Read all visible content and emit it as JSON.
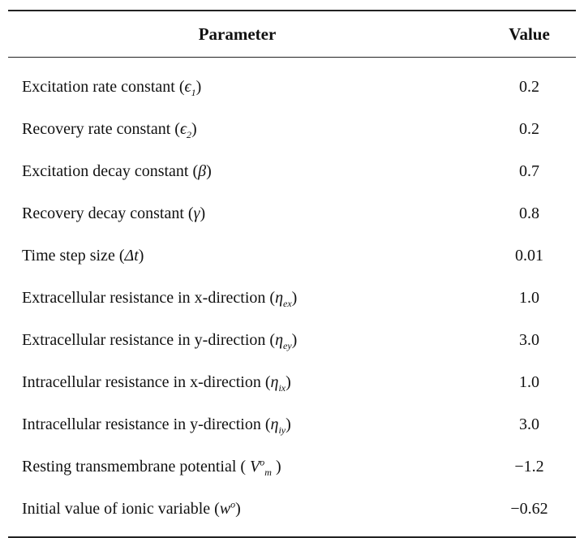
{
  "table": {
    "headers": {
      "parameter": "Parameter",
      "value": "Value"
    },
    "rows": [
      {
        "label": "Excitation rate constant",
        "open": " (",
        "symbol": "ϵ",
        "sub": "1",
        "sup": "",
        "close": ")",
        "value": "0.2"
      },
      {
        "label": "Recovery rate constant",
        "open": " (",
        "symbol": "ϵ",
        "sub": "2",
        "sup": "",
        "close": ")",
        "value": "0.2"
      },
      {
        "label": "Excitation decay constant",
        "open": " (",
        "symbol": "β",
        "sub": "",
        "sup": "",
        "close": ")",
        "value": "0.7"
      },
      {
        "label": "Recovery decay constant",
        "open": " (",
        "symbol": "γ",
        "sub": "",
        "sup": "",
        "close": ")",
        "value": "0.8"
      },
      {
        "label": "Time step size",
        "open": " (",
        "symbol": "Δt",
        "sub": "",
        "sup": "",
        "close": ")",
        "value": "0.01"
      },
      {
        "label": "Extracellular resistance in x-direction",
        "open": " (",
        "symbol": "η",
        "sub": "ex",
        "sup": "",
        "close": ")",
        "value": "1.0"
      },
      {
        "label": "Extracellular resistance in y-direction",
        "open": " (",
        "symbol": "η",
        "sub": "ey",
        "sup": "",
        "close": ")",
        "value": "3.0"
      },
      {
        "label": "Intracellular resistance in x-direction",
        "open": " (",
        "symbol": "η",
        "sub": "ix",
        "sup": "",
        "close": ")",
        "value": "1.0"
      },
      {
        "label": "Intracellular resistance in y-direction",
        "open": " (",
        "symbol": "η",
        "sub": "iy",
        "sup": "",
        "close": ")",
        "value": "3.0"
      },
      {
        "label": "Resting transmembrane potential",
        "open": " ( ",
        "symbol": "V",
        "sub": "m",
        "sup": "o",
        "close": " )",
        "value": "−1.2"
      },
      {
        "label": "Initial value of ionic variable",
        "open": " (",
        "symbol": "w",
        "sub": "",
        "sup": "o",
        "close": ")",
        "value": "−0.62"
      }
    ]
  }
}
